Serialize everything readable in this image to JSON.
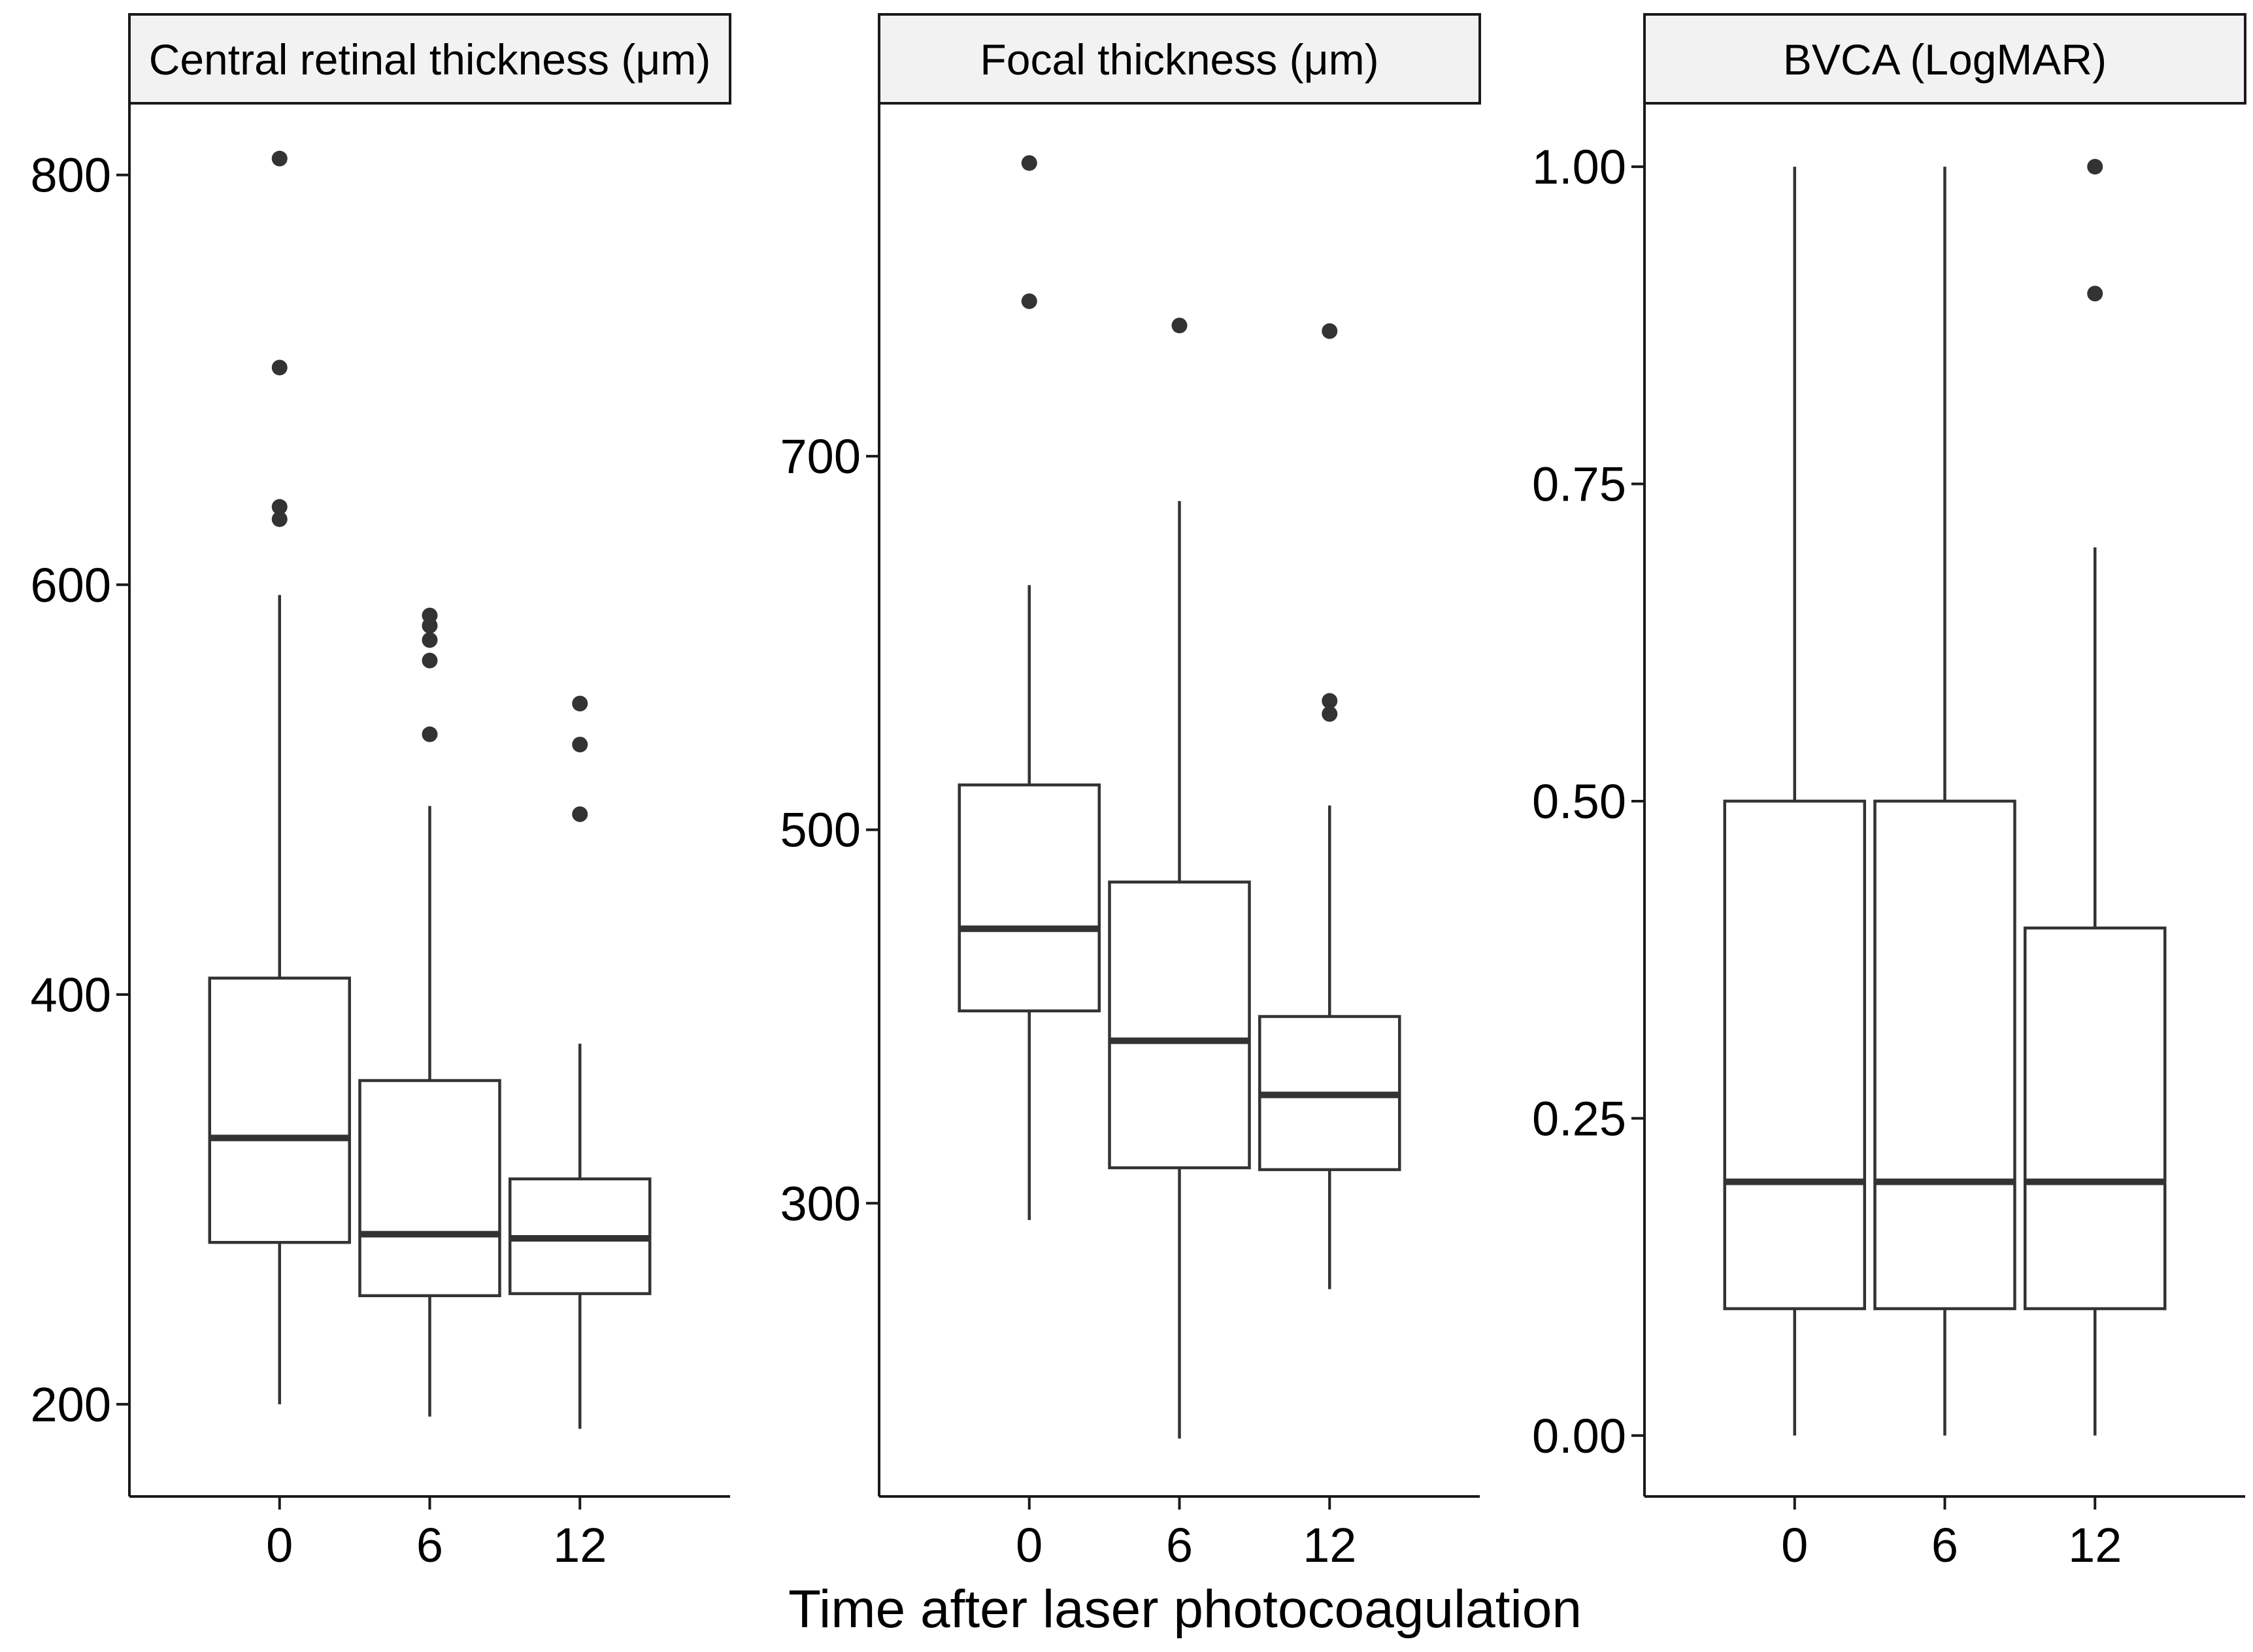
{
  "chart_data": {
    "type": "boxplot",
    "x_title": "Time after laser photocoagulation",
    "panels": [
      {
        "title": "Central retinal thickness (μm)",
        "ylim": [
          155,
          835
        ],
        "yticks": [
          200,
          400,
          600,
          800
        ],
        "ytick_labels": [
          "200",
          "400",
          "600",
          "800"
        ],
        "categories": [
          "0",
          "6",
          "12"
        ],
        "boxes": [
          {
            "x": "0",
            "lower": 200,
            "q1": 279,
            "median": 330,
            "q3": 408,
            "upper": 595,
            "outliers": [
              808,
              706,
              638,
              632
            ]
          },
          {
            "x": "6",
            "lower": 194,
            "q1": 253,
            "median": 283,
            "q3": 358,
            "upper": 492,
            "outliers": [
              585,
              580,
              573,
              563,
              527
            ]
          },
          {
            "x": "12",
            "lower": 188,
            "q1": 254,
            "median": 281,
            "q3": 310,
            "upper": 376,
            "outliers": [
              542,
              522,
              488
            ]
          }
        ]
      },
      {
        "title": "Focal thickness (μm)",
        "ylim": [
          143,
          889
        ],
        "yticks": [
          300,
          500,
          700
        ],
        "ytick_labels": [
          "300",
          "500",
          "700"
        ],
        "categories": [
          "0",
          "6",
          "12"
        ],
        "boxes": [
          {
            "x": "0",
            "lower": 291,
            "q1": 403,
            "median": 447,
            "q3": 524,
            "upper": 631,
            "outliers": [
              857,
              783
            ]
          },
          {
            "x": "6",
            "lower": 174,
            "q1": 319,
            "median": 387,
            "q3": 472,
            "upper": 676,
            "outliers": [
              770
            ]
          },
          {
            "x": "12",
            "lower": 254,
            "q1": 318,
            "median": 358,
            "q3": 400,
            "upper": 513,
            "outliers": [
              767,
              569,
              562
            ]
          }
        ]
      },
      {
        "title": "BVCA (LogMAR)",
        "ylim": [
          -0.048,
          1.05
        ],
        "yticks": [
          0.0,
          0.25,
          0.5,
          0.75,
          1.0
        ],
        "ytick_labels": [
          "0.00",
          "0.25",
          "0.50",
          "0.75",
          "1.00"
        ],
        "categories": [
          "0",
          "6",
          "12"
        ],
        "boxes": [
          {
            "x": "0",
            "lower": 0.0,
            "q1": 0.1,
            "median": 0.2,
            "q3": 0.5,
            "upper": 1.0,
            "outliers": []
          },
          {
            "x": "6",
            "lower": 0.0,
            "q1": 0.1,
            "median": 0.2,
            "q3": 0.5,
            "upper": 1.0,
            "outliers": []
          },
          {
            "x": "12",
            "lower": 0.0,
            "q1": 0.1,
            "median": 0.2,
            "q3": 0.4,
            "upper": 0.7,
            "outliers": [
              1.0,
              0.9
            ]
          }
        ]
      }
    ]
  }
}
